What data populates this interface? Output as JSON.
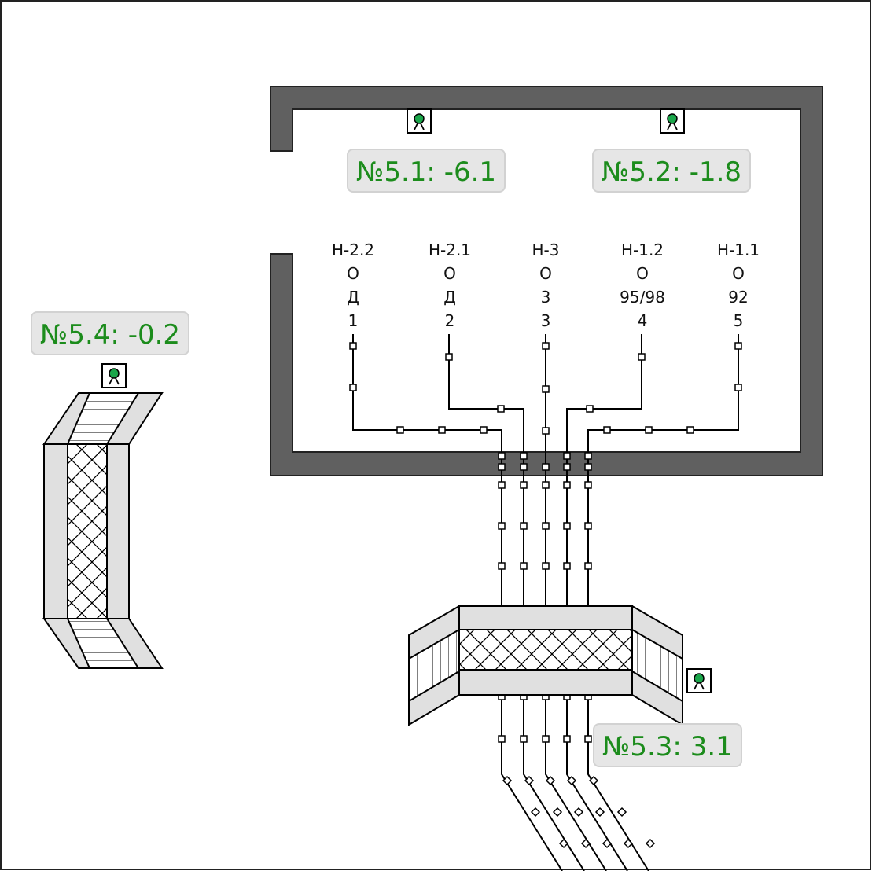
{
  "sensors": [
    {
      "id": "5.1",
      "text": "№5.1: -6.1"
    },
    {
      "id": "5.2",
      "text": "№5.2: -1.8"
    },
    {
      "id": "5.3",
      "text": "№5.3: 3.1"
    },
    {
      "id": "5.4",
      "text": "№5.4: -0.2"
    }
  ],
  "columns": [
    {
      "name": "Н-2.2",
      "state": "О",
      "fuel": "Д",
      "num": "1"
    },
    {
      "name": "Н-2.1",
      "state": "О",
      "fuel": "Д",
      "num": "2"
    },
    {
      "name": "Н-3",
      "state": "О",
      "fuel": "3",
      "num": "3"
    },
    {
      "name": "Н-1.2",
      "state": "О",
      "fuel": "95/98",
      "num": "4"
    },
    {
      "name": "Н-1.1",
      "state": "О",
      "fuel": "92",
      "num": "5"
    }
  ],
  "colors": {
    "wall": "#606060",
    "label_text": "#1c8c1c",
    "label_bg": "#e6e6e6",
    "sensor_dot": "#1aa64a"
  }
}
